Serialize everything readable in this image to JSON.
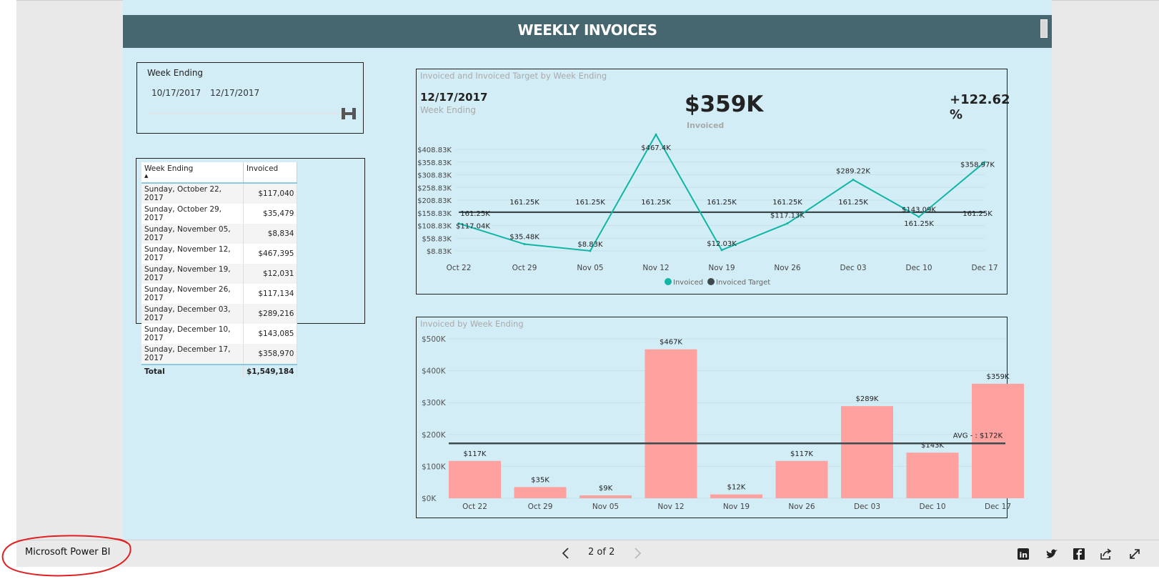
{
  "header": {
    "title": "WEEKLY INVOICES"
  },
  "slicer": {
    "label": "Week Ending",
    "start": "10/17/2017",
    "end": "12/17/2017"
  },
  "table": {
    "headers": [
      "Week Ending",
      "Invoiced"
    ],
    "rows": [
      [
        "Sunday, October 22, 2017",
        "$117,040"
      ],
      [
        "Sunday, October 29, 2017",
        "$35,479"
      ],
      [
        "Sunday, November 05, 2017",
        "$8,834"
      ],
      [
        "Sunday, November 12, 2017",
        "$467,395"
      ],
      [
        "Sunday, November 19, 2017",
        "$12,031"
      ],
      [
        "Sunday, November 26, 2017",
        "$117,134"
      ],
      [
        "Sunday, December 03, 2017",
        "$289,216"
      ],
      [
        "Sunday, December 10, 2017",
        "$143,085"
      ],
      [
        "Sunday, December 17, 2017",
        "$358,970"
      ]
    ],
    "total_label": "Total",
    "total_value": "$1,549,184"
  },
  "kpi": {
    "panel_title": "Invoiced and Invoiced Target by Week Ending",
    "date": "12/17/2017",
    "date_label": "Week Ending",
    "value": "$359K",
    "value_label": "Invoiced",
    "change": "+122.62 %"
  },
  "bar_panel": {
    "title": "Invoiced by Week Ending"
  },
  "chart_data": [
    {
      "type": "line",
      "categories": [
        "Oct 22",
        "Oct 29",
        "Nov 05",
        "Nov 12",
        "Nov 19",
        "Nov 26",
        "Dec 03",
        "Dec 10",
        "Dec 17"
      ],
      "y_ticks": [
        "$408.83K",
        "$358.83K",
        "$308.83K",
        "$258.83K",
        "$208.83K",
        "$158.83K",
        "$108.83K",
        "$58.83K",
        "$8.83K"
      ],
      "ylim": [
        8.83,
        408.83
      ],
      "series": [
        {
          "name": "Invoiced",
          "color": "#11b5a4",
          "values": [
            117.04,
            35.48,
            8.83,
            467.4,
            12.03,
            117.13,
            289.22,
            143.09,
            358.97
          ],
          "labels": [
            "$117.04K",
            "$35.48K",
            "$8.83K",
            "$467.4K",
            "$12.03K",
            "$117.13K",
            "$289.22K",
            "$143.09K",
            "$358.97K"
          ]
        },
        {
          "name": "Invoiced Target",
          "color": "#3d4a4e",
          "values": [
            161.25,
            161.25,
            161.25,
            161.25,
            161.25,
            161.25,
            161.25,
            161.25,
            161.25
          ],
          "labels": [
            "161.25K",
            "161.25K",
            "161.25K",
            "161.25K",
            "161.25K",
            "161.25K",
            "161.25K",
            "161.25K",
            "161.25K"
          ]
        }
      ],
      "legend": "bottom-center"
    },
    {
      "type": "bar",
      "categories": [
        "Oct 22",
        "Oct 29",
        "Nov 05",
        "Nov 12",
        "Nov 19",
        "Nov 26",
        "Dec 03",
        "Dec 10",
        "Dec 17"
      ],
      "values": [
        117,
        35,
        9,
        467,
        12,
        117,
        289,
        143,
        359
      ],
      "labels": [
        "$117K",
        "$35K",
        "$9K",
        "$467K",
        "$12K",
        "$117K",
        "$289K",
        "$143K",
        "$359K"
      ],
      "y_ticks": [
        "$500K",
        "$400K",
        "$300K",
        "$200K",
        "$100K",
        "$0K"
      ],
      "ylim": [
        0,
        500
      ],
      "bar_color": "#fea19f",
      "avg_line": {
        "value": 172,
        "label": "AVG - : $172K",
        "color": "#3d4a4e"
      }
    }
  ],
  "footer": {
    "brand": "Microsoft Power BI",
    "page": "2 of 2",
    "share_icons": [
      "linkedin-icon",
      "twitter-icon",
      "facebook-icon",
      "share-icon",
      "fullscreen-icon"
    ]
  }
}
